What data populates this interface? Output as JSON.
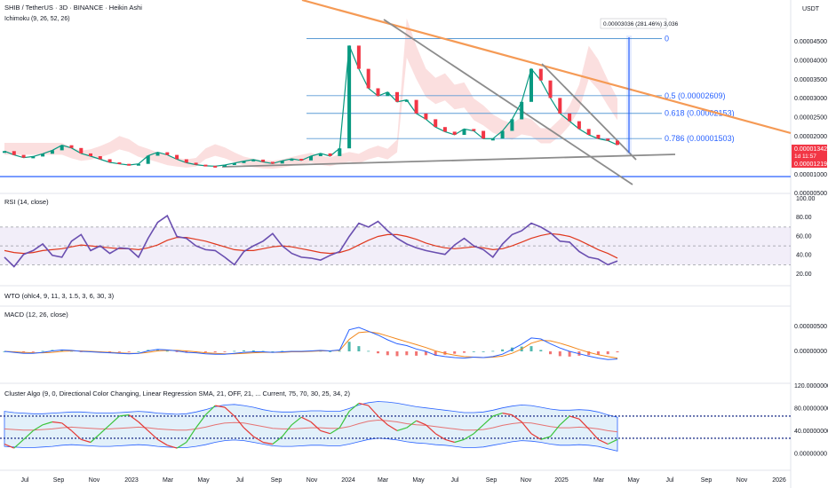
{
  "header": {
    "symbol": "SHIB / TetherUS · 3D · BINANCE · Heikin Ashi",
    "indicator": "Ichimoku (9, 26, 52, 26)",
    "currency": "USDT"
  },
  "chart_data": {
    "type": "line",
    "x_ticks": [
      "Jul",
      "Sep",
      "Nov",
      "2023",
      "Mar",
      "May",
      "Jul",
      "Sep",
      "Nov",
      "2024",
      "Mar",
      "May",
      "Jul",
      "Sep",
      "Nov",
      "2025",
      "Mar",
      "May",
      "Jul",
      "Sep",
      "Nov",
      "2026"
    ],
    "price_ticks": [
      "0.00004500",
      "0.00004000",
      "0.00003500",
      "0.00003000",
      "0.00002500",
      "0.00002000",
      "0.00001500",
      "0.00001000",
      "0.00000500"
    ],
    "price_labels": {
      "current": "0.00001342",
      "countdown": "1d 11:57",
      "low": "0.00001219"
    },
    "measure_label": "0.00003036 (281.46%) 3,036",
    "fib_levels": [
      {
        "label": "0",
        "price": 4.08e-05
      },
      {
        "label": "0.5 (0.00002609)",
        "price": 2.609e-05
      },
      {
        "label": "0.618 (0.00002153)",
        "price": 2.153e-05
      },
      {
        "label": "0.786 (0.00001503)",
        "price": 1.503e-05
      }
    ],
    "price_series": [
      1.18e-05,
      1.08e-05,
      1.01e-05,
      1.04e-05,
      1.11e-05,
      1.2e-05,
      1.33e-05,
      1.26e-05,
      1.12e-05,
      1.05e-05,
      9.7e-06,
      8.9e-06,
      8.5e-06,
      8.2e-06,
      8.5e-06,
      1.06e-05,
      1.15e-05,
      1.08e-05,
      9.7e-06,
      8.8e-06,
      8.3e-06,
      8e-06,
      7.9e-06,
      8.2e-06,
      8.7e-06,
      9.2e-06,
      9.6e-06,
      9e-06,
      8.6e-06,
      9.3e-06,
      9.8e-06,
      9.4e-06,
      1.05e-05,
      1.12e-05,
      1.05e-05,
      1.25e-05,
      3.9e-05,
      3.3e-05,
      2.8e-05,
      2.6e-05,
      2.7e-05,
      2.45e-05,
      2.5e-05,
      2.15e-05,
      2e-05,
      1.8e-05,
      1.68e-05,
      1.6e-05,
      1.75e-05,
      1.7e-05,
      1.5e-05,
      1.5e-05,
      1.7e-05,
      2e-05,
      2.45e-05,
      3.3e-05,
      3e-05,
      2.55e-05,
      2.15e-05,
      1.95e-05,
      1.75e-05,
      1.6e-05,
      1.5e-05,
      1.45e-05,
      1.34e-05
    ],
    "rsi": {
      "title": "RSI (14, close)",
      "ticks": [
        "100.00",
        "80.00",
        "60.00",
        "40.00",
        "20.00"
      ],
      "band": [
        30,
        70
      ],
      "rsi_values": [
        38,
        28,
        41,
        45,
        52,
        40,
        38,
        55,
        62,
        45,
        50,
        42,
        48,
        47,
        38,
        58,
        75,
        82,
        60,
        58,
        50,
        46,
        45,
        38,
        30,
        44,
        50,
        55,
        63,
        50,
        42,
        38,
        37,
        35,
        40,
        44,
        60,
        74,
        70,
        76,
        66,
        58,
        52,
        48,
        45,
        43,
        41,
        51,
        58,
        50,
        46,
        38,
        52,
        62,
        66,
        74,
        70,
        64,
        55,
        54,
        44,
        38,
        36,
        30,
        34
      ],
      "ma_values": [
        45,
        43,
        42,
        43,
        45,
        46,
        47,
        49,
        51,
        50,
        49,
        48,
        47,
        47,
        46,
        48,
        51,
        56,
        59,
        59,
        57,
        55,
        52,
        49,
        46,
        45,
        45,
        47,
        49,
        50,
        49,
        47,
        45,
        43,
        42,
        43,
        46,
        51,
        56,
        60,
        62,
        62,
        60,
        57,
        53,
        50,
        48,
        47,
        48,
        49,
        48,
        46,
        47,
        50,
        54,
        58,
        61,
        63,
        62,
        60,
        56,
        51,
        46,
        42,
        37
      ]
    },
    "wto": {
      "title": "WTO (ohlc4, 9, 11, 3, 1.5, 3, 6, 30, 3)"
    },
    "macd": {
      "title": "MACD (12, 26, close)",
      "ticks": [
        "0.00000500",
        "0.00000000"
      ],
      "macd_values": [
        0,
        -0.2,
        -0.4,
        -0.4,
        -0.2,
        0.1,
        0.3,
        0.2,
        0,
        -0.1,
        -0.2,
        -0.3,
        -0.4,
        -0.5,
        -0.4,
        0.1,
        0.4,
        0.3,
        0.1,
        -0.2,
        -0.3,
        -0.5,
        -0.6,
        -0.6,
        -0.4,
        -0.2,
        -0.1,
        -0.1,
        -0.2,
        -0.1,
        0,
        0,
        0.1,
        0.2,
        0.1,
        0.3,
        4.5,
        5.0,
        4.2,
        3.4,
        2.4,
        1.6,
        1.2,
        0.5,
        0.0,
        -0.8,
        -1.1,
        -1.3,
        -1.4,
        -1.2,
        -1.3,
        -1.1,
        -0.6,
        0.4,
        1.5,
        2.8,
        2.6,
        1.6,
        0.7,
        0.0,
        -0.5,
        -1.0,
        -1.4,
        -1.7,
        -1.6
      ],
      "signal_values": [
        0,
        -0.1,
        -0.2,
        -0.3,
        -0.3,
        -0.2,
        0,
        0.1,
        0.1,
        0,
        -0.1,
        -0.2,
        -0.3,
        -0.4,
        -0.4,
        -0.2,
        0.1,
        0.2,
        0.2,
        0.1,
        -0.1,
        -0.3,
        -0.4,
        -0.5,
        -0.5,
        -0.4,
        -0.3,
        -0.2,
        -0.2,
        -0.2,
        -0.1,
        -0.1,
        0,
        0.1,
        0.1,
        0.2,
        2.5,
        3.9,
        4.1,
        3.8,
        3.2,
        2.6,
        2.0,
        1.4,
        0.8,
        0.1,
        -0.4,
        -0.8,
        -1.1,
        -1.2,
        -1.3,
        -1.2,
        -1.0,
        -0.4,
        0.5,
        1.7,
        2.3,
        2.2,
        1.7,
        1.1,
        0.4,
        -0.2,
        -0.7,
        -1.1,
        -1.4
      ]
    },
    "cluster": {
      "title": "Cluster Algo (9, 0, Directional Color Changing, Linear Regression SMA, 21, OFF, 21, ... Current, 75, 70, 30, 25, 34, 2)",
      "ticks": [
        "120.00000000",
        "80.00000000",
        "40.00000000",
        "0.00000000"
      ],
      "levels": [
        70,
        32
      ],
      "osc_values": [
        22,
        15,
        30,
        45,
        55,
        60,
        58,
        45,
        30,
        25,
        40,
        55,
        70,
        72,
        60,
        45,
        30,
        20,
        15,
        25,
        50,
        72,
        88,
        85,
        70,
        50,
        35,
        25,
        22,
        35,
        55,
        68,
        60,
        45,
        40,
        50,
        78,
        92,
        88,
        70,
        55,
        45,
        50,
        62,
        55,
        40,
        30,
        25,
        30,
        40,
        55,
        70,
        75,
        72,
        60,
        40,
        30,
        35,
        55,
        70,
        65,
        48,
        30,
        22,
        30
      ],
      "mid_values": [
        48,
        47,
        46,
        46,
        47,
        48,
        50,
        51,
        50,
        49,
        48,
        48,
        49,
        50,
        51,
        50,
        48,
        47,
        46,
        46,
        48,
        51,
        55,
        58,
        59,
        58,
        55,
        52,
        49,
        48,
        48,
        49,
        50,
        50,
        49,
        49,
        52,
        57,
        61,
        63,
        62,
        60,
        57,
        55,
        54,
        52,
        50,
        48,
        46,
        46,
        47,
        50,
        54,
        57,
        59,
        58,
        55,
        52,
        50,
        50,
        51,
        50,
        48,
        45,
        43
      ],
      "upper_values": [
        78,
        76,
        75,
        74,
        74,
        75,
        76,
        77,
        77,
        76,
        75,
        75,
        76,
        77,
        78,
        77,
        75,
        74,
        73,
        74,
        77,
        81,
        86,
        89,
        90,
        88,
        85,
        81,
        78,
        77,
        77,
        78,
        79,
        79,
        78,
        78,
        83,
        89,
        93,
        95,
        94,
        92,
        89,
        86,
        84,
        82,
        80,
        78,
        76,
        76,
        77,
        80,
        84,
        87,
        89,
        88,
        85,
        82,
        80,
        80,
        81,
        80,
        77,
        72,
        68
      ],
      "lower_values": [
        18,
        17,
        16,
        16,
        17,
        18,
        20,
        21,
        20,
        19,
        18,
        18,
        19,
        20,
        21,
        20,
        18,
        17,
        16,
        16,
        18,
        21,
        25,
        28,
        29,
        28,
        25,
        22,
        19,
        18,
        18,
        19,
        20,
        20,
        19,
        19,
        22,
        26,
        30,
        32,
        31,
        29,
        26,
        24,
        23,
        21,
        20,
        18,
        16,
        16,
        17,
        20,
        23,
        26,
        28,
        27,
        25,
        22,
        20,
        20,
        21,
        20,
        18,
        14,
        10
      ]
    }
  }
}
